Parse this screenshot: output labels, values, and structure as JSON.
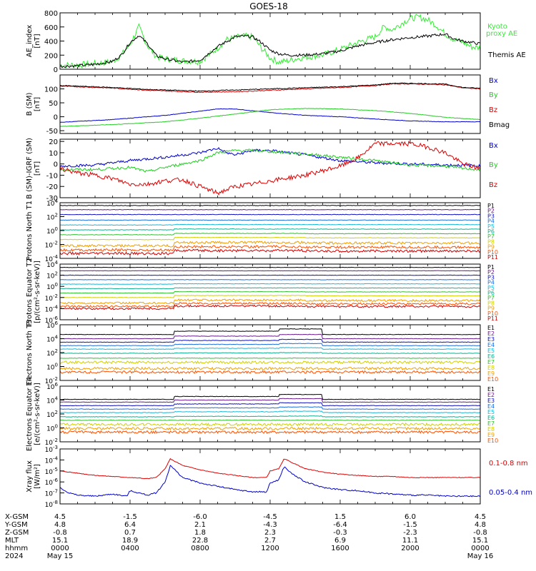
{
  "title": "GOES-18",
  "colors": {
    "black": "#000000",
    "red": "#dd0000",
    "green": "#22cc22",
    "blue": "#0000cc",
    "bright_green": "#33ee33",
    "p": [
      "#000000",
      "#6a1a8a",
      "#1010c0",
      "#1f6fe0",
      "#16b8d8",
      "#10b090",
      "#30c030",
      "#d0d000",
      "#f0a000",
      "#ff5000",
      "#d00000",
      "#8a0000"
    ]
  },
  "chart_data": [
    {
      "type": "line",
      "id": "ae",
      "ylabel": "AE_index [nT]",
      "ylim": [
        0,
        800
      ],
      "yticks": [
        "800",
        "600",
        "400",
        "200",
        "0"
      ],
      "series": [
        {
          "name": "Kyoto proxy AE",
          "color": "#33ee33",
          "noise": 45,
          "x": [
            0,
            1,
            2,
            3,
            3.5,
            4,
            4.5,
            5,
            5.5,
            6,
            7,
            8,
            9,
            9.5,
            10,
            10.5,
            11,
            11.5,
            12,
            12.5,
            13,
            13.5,
            14,
            15,
            16,
            17,
            18,
            18.5,
            19,
            19.5,
            20,
            20.5,
            21,
            21.5,
            22,
            22.5,
            23,
            23.5,
            24
          ],
          "values": [
            60,
            60,
            80,
            110,
            200,
            350,
            600,
            330,
            180,
            150,
            120,
            110,
            300,
            420,
            450,
            470,
            460,
            300,
            160,
            100,
            120,
            150,
            170,
            200,
            280,
            380,
            460,
            600,
            560,
            650,
            720,
            740,
            700,
            620,
            500,
            420,
            380,
            320,
            300
          ]
        },
        {
          "name": "Themis AE",
          "color": "#000000",
          "noise": 20,
          "x": [
            0,
            1,
            2,
            3,
            3.5,
            4,
            4.5,
            5,
            5.5,
            6,
            7,
            8,
            9,
            10,
            10.5,
            11,
            11.5,
            12,
            12.5,
            13,
            14,
            15,
            16,
            17,
            18,
            19,
            20,
            21,
            22,
            22.5,
            23,
            24
          ],
          "values": [
            40,
            50,
            70,
            110,
            200,
            380,
            480,
            360,
            190,
            150,
            100,
            130,
            320,
            460,
            470,
            460,
            380,
            270,
            220,
            200,
            200,
            220,
            260,
            330,
            380,
            420,
            450,
            470,
            500,
            430,
            400,
            360
          ]
        }
      ],
      "labels": [
        "Kyoto proxy AE",
        "Themis AE"
      ]
    },
    {
      "type": "line",
      "id": "bsm",
      "ylabel": "B (SM) [nT]",
      "ylim": [
        -60,
        150
      ],
      "yticks": [
        "100",
        "50",
        "0",
        "-50"
      ],
      "ytick_vals": [
        100,
        50,
        0,
        -50
      ],
      "series": [
        {
          "name": "Bx",
          "color": "#0000cc",
          "noise": 0.8,
          "x": [
            0,
            3,
            6,
            8,
            9,
            10,
            12,
            14,
            16,
            18,
            20,
            22,
            24
          ],
          "values": [
            -20,
            -10,
            5,
            20,
            28,
            28,
            15,
            5,
            0,
            -8,
            -15,
            -18,
            -18
          ]
        },
        {
          "name": "By",
          "color": "#22cc22",
          "noise": 0.8,
          "x": [
            0,
            3,
            6,
            8,
            10,
            12,
            14,
            16,
            18,
            20,
            22,
            24
          ],
          "values": [
            -35,
            -28,
            -18,
            -5,
            10,
            25,
            30,
            28,
            22,
            12,
            -2,
            -10
          ]
        },
        {
          "name": "Bz",
          "color": "#dd0000",
          "noise": 1.5,
          "x": [
            0,
            3,
            5,
            8,
            10,
            12,
            14,
            16,
            18,
            19,
            20,
            22,
            23,
            24
          ],
          "values": [
            110,
            103,
            95,
            88,
            90,
            95,
            100,
            105,
            112,
            118,
            118,
            115,
            104,
            100
          ]
        },
        {
          "name": "Bmag",
          "color": "#000000",
          "noise": 1.5,
          "x": [
            0,
            3,
            5,
            8,
            10,
            12,
            14,
            16,
            18,
            19,
            20,
            22,
            23,
            24
          ],
          "values": [
            112,
            105,
            98,
            92,
            96,
            100,
            104,
            108,
            114,
            120,
            120,
            117,
            105,
            102
          ]
        }
      ],
      "labels": [
        "Bx",
        "By",
        "Bz",
        "Bmag"
      ]
    },
    {
      "type": "line",
      "id": "bigrf",
      "ylabel": "B (SM)-IGRF (SM) [nT]",
      "ylim": [
        -30,
        22
      ],
      "yticks": [
        "20",
        "10",
        "0",
        "-10",
        "-20",
        "-30"
      ],
      "ytick_vals": [
        20,
        10,
        0,
        -10,
        -20,
        -30
      ],
      "series": [
        {
          "name": "Bx",
          "color": "#0000cc",
          "noise": 1.2,
          "x": [
            0,
            2,
            4,
            6,
            8,
            9,
            9.5,
            10,
            11,
            12,
            14,
            16,
            18,
            20,
            22,
            23,
            24
          ],
          "values": [
            -2,
            -1,
            3,
            6,
            10,
            14,
            10,
            8,
            12,
            12,
            8,
            3,
            1,
            0,
            -1,
            -1,
            -2
          ]
        },
        {
          "name": "By",
          "color": "#22cc22",
          "noise": 1.2,
          "x": [
            0,
            2,
            4,
            5,
            6,
            8,
            9,
            10,
            11,
            12,
            14,
            16,
            18,
            20,
            22,
            23,
            24
          ],
          "values": [
            -5,
            -5,
            -3,
            -7,
            -3,
            3,
            10,
            12,
            12,
            11,
            9,
            6,
            3,
            -1,
            -2,
            -4,
            -5
          ]
        },
        {
          "name": "Bz",
          "color": "#dd0000",
          "noise": 2.0,
          "x": [
            0,
            1,
            2,
            3,
            4,
            5,
            6,
            7,
            8,
            9,
            10,
            11,
            12,
            14,
            16,
            17,
            18,
            20,
            21,
            22,
            23,
            24
          ],
          "values": [
            -4,
            -8,
            -10,
            -13,
            -18,
            -18,
            -15,
            -14,
            -20,
            -26,
            -20,
            -18,
            -15,
            -10,
            -2,
            5,
            18,
            18,
            15,
            10,
            0,
            -4
          ]
        }
      ],
      "labels": [
        "Bx",
        "By",
        "Bz"
      ]
    },
    {
      "type": "line",
      "id": "pn",
      "log": true,
      "ylabel": "Protons North T1",
      "ylim_log": [
        -4,
        4
      ],
      "yticks": [
        "10^4",
        "10^2",
        "10^0",
        "10^-2",
        "10^-4"
      ],
      "ytick_vals": [
        4,
        2,
        0,
        -2,
        -4
      ],
      "channels": [
        "P1",
        "P2",
        "P3",
        "P4",
        "P5",
        "P6",
        "P7",
        "P8",
        "P9",
        "P10",
        "P11"
      ],
      "levels": [
        3.6,
        3.0,
        2.3,
        1.5,
        0.8,
        0.1,
        -0.6,
        -1.3,
        -2.2,
        -2.8,
        -3.3
      ],
      "bumps": [
        0,
        0,
        0,
        0,
        0.1,
        0.2,
        0.3,
        0.5,
        0.8,
        0.8,
        0.7
      ]
    },
    {
      "type": "line",
      "id": "pe",
      "log": true,
      "ylabel": "Protons Equator T2 [p/(cm²-s-sr-keV)]",
      "ylim_log": [
        -6,
        4
      ],
      "yticks": [
        "10^4",
        "10^2",
        "10^0",
        "10^-2",
        "10^-4",
        "10^-6"
      ],
      "ytick_vals": [
        4,
        2,
        0,
        -2,
        -4,
        -6
      ],
      "channels": [
        "P1",
        "P2",
        "P3",
        "P4",
        "P5",
        "P6",
        "P7",
        "P8",
        "P9",
        "P10",
        "P11"
      ],
      "levels": [
        3.4,
        2.8,
        2.0,
        1.2,
        0.4,
        -0.4,
        -1.2,
        -2.0,
        -3.0,
        -3.6,
        -4.0
      ],
      "bumps": [
        0,
        0,
        0,
        0,
        0.1,
        0.2,
        0.4,
        0.6,
        0.9,
        0.9,
        0.8
      ]
    },
    {
      "type": "line",
      "id": "en",
      "log": true,
      "ylabel": "Electrons North T3",
      "ylim_log": [
        -2,
        6
      ],
      "yticks": [
        "10^6",
        "10^4",
        "10^2",
        "10^0",
        "10^-2"
      ],
      "ytick_vals": [
        6,
        4,
        2,
        0,
        -2
      ],
      "channels": [
        "E1",
        "E2",
        "E3",
        "E4",
        "E5",
        "E6",
        "E7",
        "E8",
        "E9",
        "E10"
      ],
      "levels": [
        4.6,
        4.0,
        3.5,
        3.0,
        2.5,
        1.9,
        1.2,
        0.6,
        -0.3,
        -0.8
      ],
      "bumps": [
        0.8,
        0.6,
        0.4,
        0.3,
        0.2,
        0.1,
        0,
        0,
        0,
        0
      ]
    },
    {
      "type": "line",
      "id": "ee",
      "log": true,
      "ylabel": "Electrons Equator T4 [e/(cm²-s-sr-keV)]",
      "ylim_log": [
        -2,
        6
      ],
      "yticks": [
        "10^6",
        "10^4",
        "10^2",
        "10^0",
        "10^-2"
      ],
      "ytick_vals": [
        6,
        4,
        2,
        0,
        -2
      ],
      "channels": [
        "E1",
        "E2",
        "E3",
        "E4",
        "E5",
        "E6",
        "E7",
        "E8",
        "E9",
        "E10"
      ],
      "levels": [
        4.1,
        3.7,
        3.2,
        2.7,
        2.2,
        1.6,
        1.1,
        0.5,
        -0.1,
        -0.6
      ],
      "bumps": [
        0.7,
        0.5,
        0.4,
        0.3,
        0.2,
        0.1,
        0,
        0,
        0,
        0
      ]
    },
    {
      "type": "line",
      "id": "xray",
      "log": true,
      "ylabel": "Xray flux [W/m²]",
      "ylim_log": [
        -8,
        -3
      ],
      "yticks": [
        "10^-3",
        "10^-4",
        "10^-5",
        "10^-6",
        "10^-7",
        "10^-8"
      ],
      "ytick_vals": [
        -3,
        -4,
        -5,
        -6,
        -7,
        -8
      ],
      "series": [
        {
          "name": "0.1-0.8 nm",
          "color": "#dd0000",
          "noise": 0.03,
          "x": [
            0,
            1,
            2,
            3,
            4,
            5,
            5.5,
            6,
            6.3,
            7,
            8,
            9,
            10,
            11,
            11.8,
            12,
            12.5,
            12.8,
            13.2,
            14,
            15,
            16,
            17,
            18,
            19,
            20,
            21,
            22,
            23,
            24
          ],
          "values": [
            -5.0,
            -5.2,
            -5.4,
            -5.5,
            -5.6,
            -5.7,
            -5.6,
            -4.8,
            -3.9,
            -4.5,
            -4.9,
            -5.2,
            -5.4,
            -5.6,
            -5.6,
            -5.0,
            -4.8,
            -3.9,
            -4.2,
            -4.8,
            -5.1,
            -5.3,
            -5.4,
            -5.5,
            -5.5,
            -5.6,
            -5.6,
            -5.6,
            -5.6,
            -5.6
          ]
        },
        {
          "name": "0.05-0.4 nm",
          "color": "#0000cc",
          "noise": 0.06,
          "x": [
            0,
            0.5,
            1,
            2,
            3,
            3.8,
            4,
            5,
            5.5,
            6,
            6.3,
            7,
            8,
            9,
            10,
            11,
            11.8,
            12,
            12.5,
            12.8,
            13.2,
            14,
            15,
            16,
            17,
            18,
            19,
            20,
            21,
            22,
            23,
            24
          ],
          "values": [
            -6.5,
            -7.0,
            -7.2,
            -7.3,
            -7.1,
            -7.3,
            -6.8,
            -7.2,
            -7.0,
            -6.0,
            -4.5,
            -5.6,
            -6.1,
            -6.4,
            -6.7,
            -6.9,
            -6.9,
            -6.1,
            -5.8,
            -4.6,
            -5.2,
            -6.0,
            -6.5,
            -6.7,
            -6.8,
            -7.0,
            -7.1,
            -7.2,
            -7.2,
            -7.3,
            -7.3,
            -7.3
          ]
        }
      ],
      "labels": [
        "0.1-0.8 nm",
        "0.05-0.4 nm"
      ]
    }
  ],
  "legend_labels": {
    "ae_kyoto_1": "Kyoto",
    "ae_kyoto_2": "proxy AE",
    "ae_themis": "Themis AE"
  },
  "ephemeris": {
    "rows": [
      {
        "label": "X-GSM",
        "values": [
          "4.5",
          "-1.5",
          "-6.0",
          "-4.5",
          "1.5",
          "6.0",
          "4.5"
        ]
      },
      {
        "label": "Y-GSM",
        "values": [
          "4.8",
          "6.4",
          "2.1",
          "-4.3",
          "-6.4",
          "-1.5",
          "4.8"
        ]
      },
      {
        "label": "Z-GSM",
        "values": [
          "-0.8",
          "0.7",
          "1.8",
          "2.3",
          "-0.3",
          "-2.3",
          "-0.8"
        ]
      },
      {
        "label": "MLT",
        "values": [
          "15.1",
          "18.9",
          "22.8",
          "2.7",
          "6.9",
          "11.1",
          "15.1"
        ]
      },
      {
        "label": "hhmm",
        "values": [
          "0000",
          "0400",
          "0800",
          "1200",
          "1600",
          "2000",
          "0000"
        ]
      },
      {
        "label": "2024",
        "values": [
          "May 15",
          "",
          "",
          "",
          "",
          "",
          "May 16"
        ]
      }
    ]
  }
}
